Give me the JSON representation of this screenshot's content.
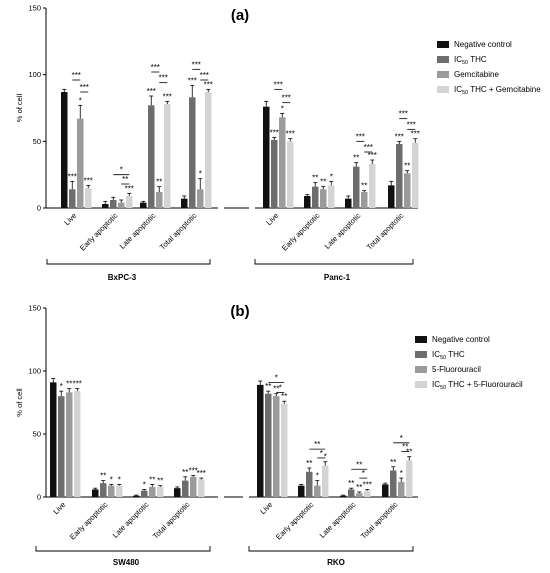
{
  "chart_data": [
    {
      "type": "bar",
      "panel_label": "(a)",
      "ylabel": "% of cell",
      "ylim": [
        0,
        150
      ],
      "yticks": [
        "0",
        "50",
        "100",
        "150"
      ],
      "categories": [
        "Live",
        "Early apoptotic",
        "Late apoptotic",
        "Total apoptotic",
        "Live",
        "Early apoptotic",
        "Late apoptotic",
        "Total apoptotic"
      ],
      "cell_lines": [
        "BxPC-3",
        "Panc-1"
      ],
      "legend": {
        "position": "right",
        "entries": [
          {
            "base": "Negative control",
            "sub": "",
            "suffix": ""
          },
          {
            "base": "IC",
            "sub": "50",
            "suffix": " THC"
          },
          {
            "base": "Gemcitabine",
            "sub": "",
            "suffix": ""
          },
          {
            "base": "IC",
            "sub": "50",
            "suffix": " THC + Gemcitabine"
          }
        ]
      },
      "colors": [
        "#111111",
        "#6d6d6d",
        "#9b9b9b",
        "#d4d4d4"
      ],
      "series": [
        {
          "values": [
            87,
            3,
            4,
            7,
            76,
            9,
            7,
            17
          ],
          "errors": [
            2,
            2,
            1,
            2,
            4,
            1,
            2,
            3
          ]
        },
        {
          "values": [
            14,
            6,
            77,
            83,
            51,
            16,
            31,
            48
          ],
          "errors": [
            6,
            2,
            7,
            9,
            2,
            3,
            3,
            2
          ]
        },
        {
          "values": [
            67,
            4,
            12,
            14,
            68,
            14,
            12,
            26
          ],
          "errors": [
            10,
            2,
            4,
            8,
            3,
            2,
            1,
            2
          ]
        },
        {
          "values": [
            15,
            9,
            78,
            87,
            50,
            17,
            33,
            49
          ],
          "errors": [
            2,
            2,
            2,
            2,
            2,
            3,
            3,
            3
          ]
        }
      ],
      "bar_stars": [
        [
          "",
          "***",
          "*",
          "***"
        ],
        [
          "",
          "",
          "",
          "***"
        ],
        [
          "",
          "***",
          "**",
          "***"
        ],
        [
          "",
          "***",
          "*",
          "***"
        ],
        [
          "",
          "***",
          "*",
          "***"
        ],
        [
          "",
          "**",
          "**",
          "*"
        ],
        [
          "",
          "**",
          "**",
          "***"
        ],
        [
          "",
          "***",
          "**",
          "***"
        ]
      ],
      "brackets": [
        {
          "cat": 0,
          "a": 1,
          "b": 2,
          "y": 96,
          "label": "***"
        },
        {
          "cat": 0,
          "a": 2,
          "b": 3,
          "y": 87,
          "label": "***"
        },
        {
          "cat": 1,
          "a": 1,
          "b": 3,
          "y": 25,
          "label": "*"
        },
        {
          "cat": 1,
          "a": 2,
          "b": 3,
          "y": 18,
          "label": "**"
        },
        {
          "cat": 2,
          "a": 1,
          "b": 2,
          "y": 102,
          "label": "***"
        },
        {
          "cat": 2,
          "a": 2,
          "b": 3,
          "y": 94,
          "label": "***"
        },
        {
          "cat": 3,
          "a": 1,
          "b": 2,
          "y": 104,
          "label": "***"
        },
        {
          "cat": 3,
          "a": 2,
          "b": 3,
          "y": 96,
          "label": "***"
        },
        {
          "cat": 4,
          "a": 1,
          "b": 2,
          "y": 89,
          "label": "***"
        },
        {
          "cat": 4,
          "a": 2,
          "b": 3,
          "y": 79,
          "label": "***"
        },
        {
          "cat": 6,
          "a": 1,
          "b": 2,
          "y": 50,
          "label": "***"
        },
        {
          "cat": 6,
          "a": 2,
          "b": 3,
          "y": 42,
          "label": "***"
        },
        {
          "cat": 7,
          "a": 1,
          "b": 2,
          "y": 67,
          "label": "***"
        },
        {
          "cat": 7,
          "a": 2,
          "b": 3,
          "y": 59,
          "label": "***"
        }
      ]
    },
    {
      "type": "bar",
      "panel_label": "(b)",
      "ylabel": "% of cell",
      "ylim": [
        0,
        150
      ],
      "yticks": [
        "0",
        "50",
        "100",
        "150"
      ],
      "categories": [
        "Live",
        "Early apoptotic",
        "Late apoptotic",
        "Total apoptotic",
        "Live",
        "Early apoptotic",
        "Late apoptotic",
        "Total apoptotic"
      ],
      "cell_lines": [
        "SW480",
        "RKO"
      ],
      "legend": {
        "position": "right",
        "entries": [
          {
            "base": "Negative control",
            "sub": "",
            "suffix": ""
          },
          {
            "base": "IC",
            "sub": "50",
            "suffix": " THC"
          },
          {
            "base": "5-Fluorouracil",
            "sub": "",
            "suffix": ""
          },
          {
            "base": "IC",
            "sub": "50",
            "suffix": " THC + 5-Fluorouracil"
          }
        ]
      },
      "colors": [
        "#111111",
        "#6d6d6d",
        "#9b9b9b",
        "#d4d4d4"
      ],
      "series": [
        {
          "values": [
            91,
            6,
            1,
            7,
            89,
            9,
            1,
            10
          ],
          "errors": [
            3,
            1,
            0.5,
            1,
            3,
            1,
            0.5,
            1
          ]
        },
        {
          "values": [
            80,
            11,
            5,
            13,
            82,
            20,
            6,
            21
          ],
          "errors": [
            4,
            2,
            1,
            3,
            2,
            3,
            1,
            3
          ]
        },
        {
          "values": [
            83,
            9,
            8,
            16,
            80,
            9,
            3,
            12
          ],
          "errors": [
            3,
            1,
            2,
            1,
            2,
            4,
            1,
            3
          ]
        },
        {
          "values": [
            84,
            9,
            8,
            14,
            74,
            25,
            5,
            29
          ],
          "errors": [
            2,
            1,
            1,
            1,
            2,
            3,
            1,
            3
          ]
        }
      ],
      "bar_stars": [
        [
          "",
          "*",
          "**",
          "***"
        ],
        [
          "",
          "**",
          "*",
          "*"
        ],
        [
          "",
          "*",
          "**",
          "**"
        ],
        [
          "",
          "**",
          "***",
          "***"
        ],
        [
          "",
          "**",
          "**",
          "**"
        ],
        [
          "",
          "**",
          "*",
          "*"
        ],
        [
          "",
          "**",
          "**",
          "***"
        ],
        [
          "",
          "**",
          "*",
          "**"
        ]
      ],
      "brackets": [
        {
          "cat": 4,
          "a": 1,
          "b": 3,
          "y": 91,
          "label": "*"
        },
        {
          "cat": 4,
          "a": 2,
          "b": 3,
          "y": 83,
          "label": "*"
        },
        {
          "cat": 5,
          "a": 1,
          "b": 3,
          "y": 38,
          "label": "**"
        },
        {
          "cat": 5,
          "a": 2,
          "b": 3,
          "y": 31,
          "label": "*"
        },
        {
          "cat": 6,
          "a": 1,
          "b": 3,
          "y": 22,
          "label": "**"
        },
        {
          "cat": 6,
          "a": 2,
          "b": 3,
          "y": 15,
          "label": "*"
        },
        {
          "cat": 7,
          "a": 1,
          "b": 3,
          "y": 43,
          "label": "*"
        },
        {
          "cat": 7,
          "a": 2,
          "b": 3,
          "y": 36,
          "label": "**"
        }
      ]
    }
  ]
}
